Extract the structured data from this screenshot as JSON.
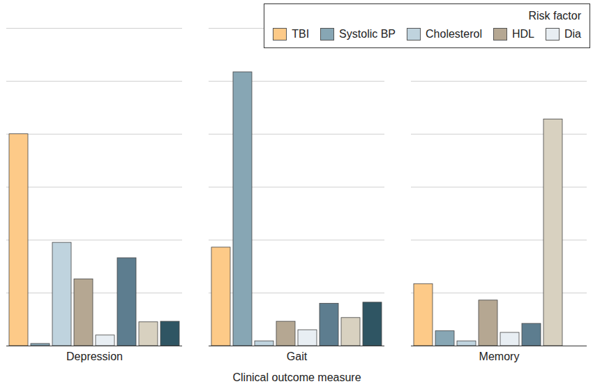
{
  "chart_data": {
    "type": "bar",
    "x_label": "Clinical outcome measure",
    "legend_title": "Risk factor",
    "legend": "top-right",
    "grid": true,
    "tick_labels": "x",
    "categories": [
      "Depression",
      "Gait",
      "Memory"
    ],
    "ylim": [
      0,
      6
    ],
    "yticks": [
      0,
      1,
      2,
      3,
      4,
      5,
      6
    ],
    "series": [
      {
        "name": "TBI",
        "color": "#fdca88",
        "values": [
          4.0,
          1.86,
          1.17
        ]
      },
      {
        "name": "Systolic BP",
        "color": "#87a6b4",
        "values": [
          0.04,
          5.17,
          0.28
        ]
      },
      {
        "name": "Cholesterol",
        "color": "#bfd3de",
        "values": [
          1.95,
          0.09,
          0.09
        ]
      },
      {
        "name": "HDL",
        "color": "#b5a792",
        "values": [
          1.26,
          0.46,
          0.86
        ]
      },
      {
        "name": "Dia",
        "color": "#e8eef3",
        "values": [
          0.2,
          0.3,
          0.25
        ]
      },
      {
        "name": null,
        "color": "#5d7d8f",
        "values": [
          1.66,
          0.8,
          0.42
        ]
      },
      {
        "name": null,
        "color": "#d8d1c0",
        "values": [
          0.45,
          0.53,
          4.28
        ]
      },
      {
        "name": null,
        "color": "#2f5563",
        "values": [
          0.46,
          0.82,
          null
        ]
      }
    ]
  }
}
